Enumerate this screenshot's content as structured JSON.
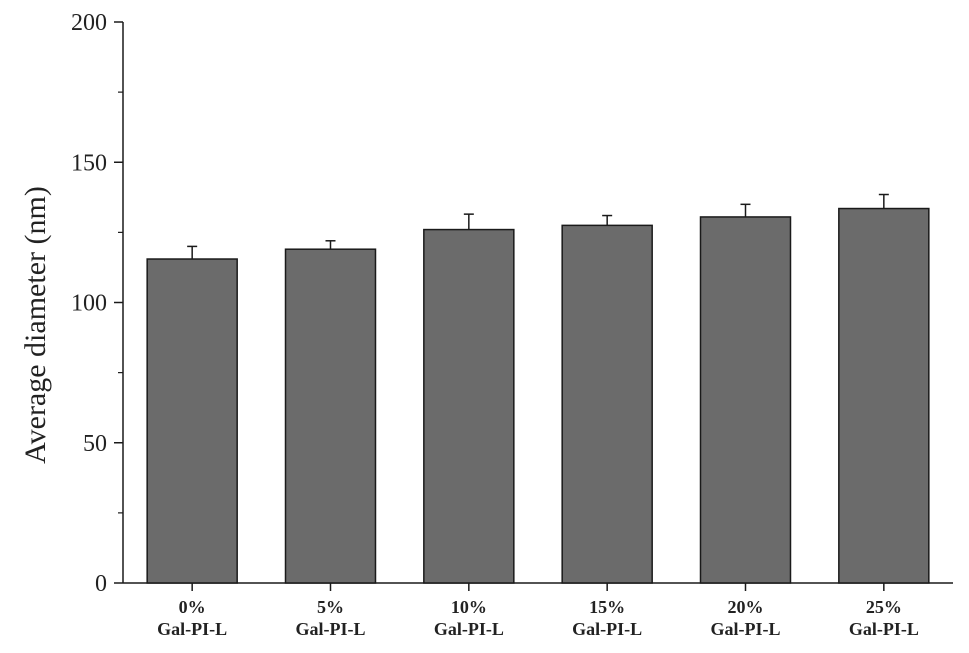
{
  "chart_data": {
    "type": "bar",
    "title": "",
    "xlabel": "",
    "ylabel": "Average diameter (nm)",
    "categories": [
      [
        "0%",
        "Gal-PI-L"
      ],
      [
        "5%",
        "Gal-PI-L"
      ],
      [
        "10%",
        "Gal-PI-L"
      ],
      [
        "15%",
        "Gal-PI-L"
      ],
      [
        "20%",
        "Gal-PI-L"
      ],
      [
        "25%",
        "Gal-PI-L"
      ]
    ],
    "values": [
      115.5,
      119,
      126,
      127.5,
      130.5,
      133.5
    ],
    "errors": [
      4.5,
      3,
      5.5,
      3.5,
      4.5,
      5
    ],
    "ylim": [
      0,
      200
    ],
    "yticks": [
      0,
      50,
      100,
      150,
      200
    ],
    "grid": false,
    "legend": "none",
    "bar_color": "#6b6b6b",
    "edge_color": "#1a1a1a"
  }
}
